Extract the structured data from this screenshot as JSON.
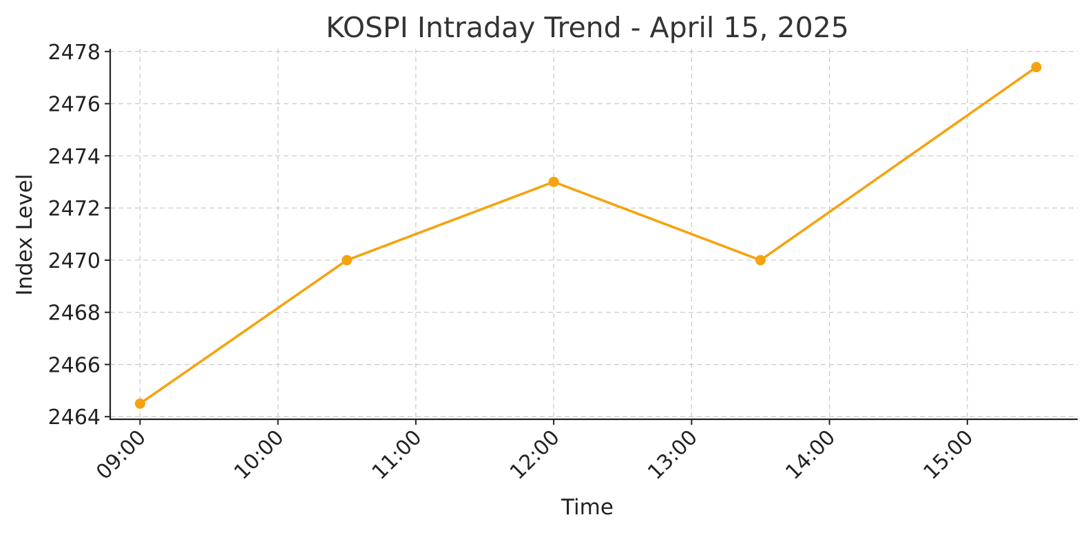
{
  "chart_data": {
    "type": "line",
    "title": "KOSPI Intraday Trend - April 15, 2025",
    "xlabel": "Time",
    "ylabel": "Index Level",
    "x": [
      "09:00",
      "10:30",
      "12:00",
      "13:30",
      "15:30"
    ],
    "series": [
      {
        "values": [
          2464.5,
          2470.0,
          2473.0,
          2470.0,
          2477.4
        ],
        "color": "#f5a30f"
      }
    ],
    "x_ticks": [
      "09:00",
      "10:00",
      "11:00",
      "12:00",
      "13:00",
      "14:00",
      "15:00"
    ],
    "y_ticks": [
      2464,
      2466,
      2468,
      2470,
      2472,
      2474,
      2476,
      2478
    ],
    "ylim": [
      2463.9,
      2478.1
    ],
    "xlim": [
      "08:47",
      "15:48"
    ],
    "grid": true,
    "legend": "none"
  }
}
